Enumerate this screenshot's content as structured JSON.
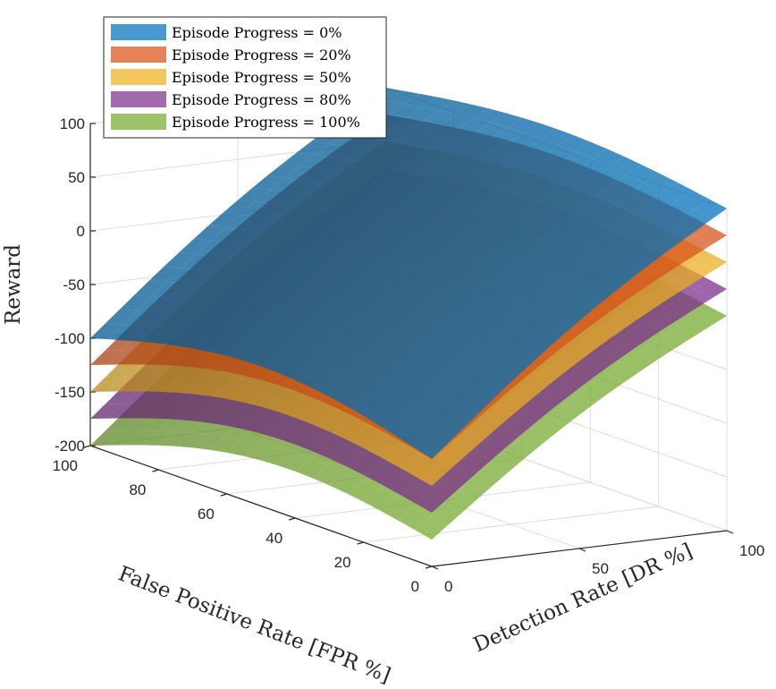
{
  "chart_data": {
    "type": "surface3d",
    "zlabel": "Reward",
    "xlabel": "False Positive Rate [FPR %]",
    "ylabel": "Detection Rate [DR %]",
    "xlim": [
      0,
      100
    ],
    "ylim": [
      0,
      100
    ],
    "zlim": [
      -200,
      100
    ],
    "x_ticks": [
      0,
      20,
      40,
      60,
      80,
      100
    ],
    "y_ticks": [
      0,
      50,
      100
    ],
    "z_ticks": [
      -200,
      -150,
      -100,
      -50,
      0,
      50,
      100
    ],
    "x_tick_labels": [
      "0",
      "20",
      "40",
      "60",
      "80",
      "100"
    ],
    "y_tick_labels": [
      "0",
      "50",
      "100"
    ],
    "z_tick_labels": [
      "-200",
      "-150",
      "-100",
      "-50",
      "0",
      "50",
      "100"
    ],
    "grid": true,
    "legend": {
      "position": "top-left",
      "entries": [
        "Episode Progress = 0%",
        "Episode Progress = 20%",
        "Episode Progress = 50%",
        "Episode Progress = 80%",
        "Episode Progress = 100%"
      ]
    },
    "series": [
      {
        "name": "Episode Progress = 0%",
        "color": "#0072BD",
        "corners": {
          "fpr0_dr0": -100,
          "fpr100_dr0": -100,
          "fpr0_dr100": 100,
          "fpr100_dr100": 100
        }
      },
      {
        "name": "Episode Progress = 20%",
        "color": "#D95319",
        "corners": {
          "fpr0_dr0": -100,
          "fpr100_dr0": -125,
          "fpr0_dr100": 75,
          "fpr100_dr100": 75
        }
      },
      {
        "name": "Episode Progress = 50%",
        "color": "#EDB120",
        "corners": {
          "fpr0_dr0": -125,
          "fpr100_dr0": -150,
          "fpr0_dr100": 50,
          "fpr100_dr100": 50
        }
      },
      {
        "name": "Episode Progress = 80%",
        "color": "#7E2F8E",
        "corners": {
          "fpr0_dr0": -150,
          "fpr100_dr0": -175,
          "fpr0_dr100": 25,
          "fpr100_dr100": 25
        }
      },
      {
        "name": "Episode Progress = 100%",
        "color": "#77AC30",
        "corners": {
          "fpr0_dr0": -175,
          "fpr100_dr0": -200,
          "fpr0_dr100": 0,
          "fpr100_dr100": 0
        }
      }
    ]
  }
}
